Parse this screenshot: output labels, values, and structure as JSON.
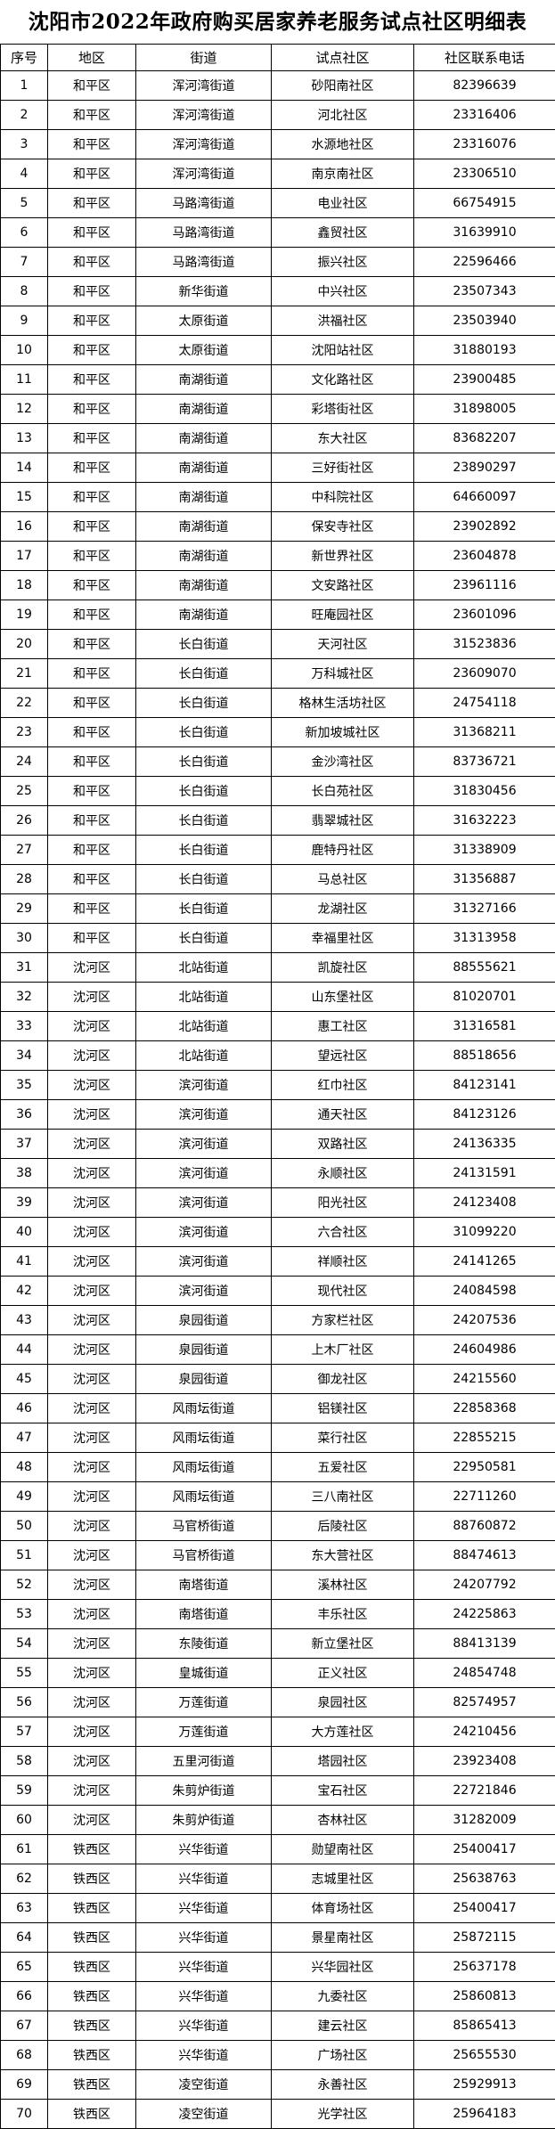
{
  "header": {
    "title": "沈阳市2022年政府购买居家养老服务试点社区明细表"
  },
  "table": {
    "columns": [
      "序号",
      "地区",
      "街道",
      "试点社区",
      "社区联系电话"
    ],
    "rows": [
      [
        "1",
        "和平区",
        "浑河湾街道",
        "砂阳南社区",
        "82396639"
      ],
      [
        "2",
        "和平区",
        "浑河湾街道",
        "河北社区",
        "23316406"
      ],
      [
        "3",
        "和平区",
        "浑河湾街道",
        "水源地社区",
        "23316076"
      ],
      [
        "4",
        "和平区",
        "浑河湾街道",
        "南京南社区",
        "23306510"
      ],
      [
        "5",
        "和平区",
        "马路湾街道",
        "电业社区",
        "66754915"
      ],
      [
        "6",
        "和平区",
        "马路湾街道",
        "鑫贸社区",
        "31639910"
      ],
      [
        "7",
        "和平区",
        "马路湾街道",
        "振兴社区",
        "22596466"
      ],
      [
        "8",
        "和平区",
        "新华街道",
        "中兴社区",
        "23507343"
      ],
      [
        "9",
        "和平区",
        "太原街道",
        "洪福社区",
        "23503940"
      ],
      [
        "10",
        "和平区",
        "太原街道",
        "沈阳站社区",
        "31880193"
      ],
      [
        "11",
        "和平区",
        "南湖街道",
        "文化路社区",
        "23900485"
      ],
      [
        "12",
        "和平区",
        "南湖街道",
        "彩塔街社区",
        "31898005"
      ],
      [
        "13",
        "和平区",
        "南湖街道",
        "东大社区",
        "83682207"
      ],
      [
        "14",
        "和平区",
        "南湖街道",
        "三好街社区",
        "23890297"
      ],
      [
        "15",
        "和平区",
        "南湖街道",
        "中科院社区",
        "64660097"
      ],
      [
        "16",
        "和平区",
        "南湖街道",
        "保安寺社区",
        "23902892"
      ],
      [
        "17",
        "和平区",
        "南湖街道",
        "新世界社区",
        "23604878"
      ],
      [
        "18",
        "和平区",
        "南湖街道",
        "文安路社区",
        "23961116"
      ],
      [
        "19",
        "和平区",
        "南湖街道",
        "旺庵园社区",
        "23601096"
      ],
      [
        "20",
        "和平区",
        "长白街道",
        "天河社区",
        "31523836"
      ],
      [
        "21",
        "和平区",
        "长白街道",
        "万科城社区",
        "23609070"
      ],
      [
        "22",
        "和平区",
        "长白街道",
        "格林生活坊社区",
        "24754118"
      ],
      [
        "23",
        "和平区",
        "长白街道",
        "新加坡城社区",
        "31368211"
      ],
      [
        "24",
        "和平区",
        "长白街道",
        "金沙湾社区",
        "83736721"
      ],
      [
        "25",
        "和平区",
        "长白街道",
        "长白苑社区",
        "31830456"
      ],
      [
        "26",
        "和平区",
        "长白街道",
        "翡翠城社区",
        "31632223"
      ],
      [
        "27",
        "和平区",
        "长白街道",
        "鹿特丹社区",
        "31338909"
      ],
      [
        "28",
        "和平区",
        "长白街道",
        "马总社区",
        "31356887"
      ],
      [
        "29",
        "和平区",
        "长白街道",
        "龙湖社区",
        "31327166"
      ],
      [
        "30",
        "和平区",
        "长白街道",
        "幸福里社区",
        "31313958"
      ],
      [
        "31",
        "沈河区",
        "北站街道",
        "凯旋社区",
        "88555621"
      ],
      [
        "32",
        "沈河区",
        "北站街道",
        "山东堡社区",
        "81020701"
      ],
      [
        "33",
        "沈河区",
        "北站街道",
        "惠工社区",
        "31316581"
      ],
      [
        "34",
        "沈河区",
        "北站街道",
        "望远社区",
        "88518656"
      ],
      [
        "35",
        "沈河区",
        "滨河街道",
        "红巾社区",
        "84123141"
      ],
      [
        "36",
        "沈河区",
        "滨河街道",
        "通天社区",
        "84123126"
      ],
      [
        "37",
        "沈河区",
        "滨河街道",
        "双路社区",
        "24136335"
      ],
      [
        "38",
        "沈河区",
        "滨河街道",
        "永顺社区",
        "24131591"
      ],
      [
        "39",
        "沈河区",
        "滨河街道",
        "阳光社区",
        "24123408"
      ],
      [
        "40",
        "沈河区",
        "滨河街道",
        "六合社区",
        "31099220"
      ],
      [
        "41",
        "沈河区",
        "滨河街道",
        "祥顺社区",
        "24141265"
      ],
      [
        "42",
        "沈河区",
        "滨河街道",
        "现代社区",
        "24084598"
      ],
      [
        "43",
        "沈河区",
        "泉园街道",
        "方家栏社区",
        "24207536"
      ],
      [
        "44",
        "沈河区",
        "泉园街道",
        "上木厂社区",
        "24604986"
      ],
      [
        "45",
        "沈河区",
        "泉园街道",
        "御龙社区",
        "24215560"
      ],
      [
        "46",
        "沈河区",
        "风雨坛街道",
        "铝镁社区",
        "22858368"
      ],
      [
        "47",
        "沈河区",
        "风雨坛街道",
        "菜行社区",
        "22855215"
      ],
      [
        "48",
        "沈河区",
        "风雨坛街道",
        "五爱社区",
        "22950581"
      ],
      [
        "49",
        "沈河区",
        "风雨坛街道",
        "三八南社区",
        "22711260"
      ],
      [
        "50",
        "沈河区",
        "马官桥街道",
        "后陵社区",
        "88760872"
      ],
      [
        "51",
        "沈河区",
        "马官桥街道",
        "东大营社区",
        "88474613"
      ],
      [
        "52",
        "沈河区",
        "南塔街道",
        "溪林社区",
        "24207792"
      ],
      [
        "53",
        "沈河区",
        "南塔街道",
        "丰乐社区",
        "24225863"
      ],
      [
        "54",
        "沈河区",
        "东陵街道",
        "新立堡社区",
        "88413139"
      ],
      [
        "55",
        "沈河区",
        "皇城街道",
        "正义社区",
        "24854748"
      ],
      [
        "56",
        "沈河区",
        "万莲街道",
        "泉园社区",
        "82574957"
      ],
      [
        "57",
        "沈河区",
        "万莲街道",
        "大方莲社区",
        "24210456"
      ],
      [
        "58",
        "沈河区",
        "五里河街道",
        "塔园社区",
        "23923408"
      ],
      [
        "59",
        "沈河区",
        "朱剪炉街道",
        "宝石社区",
        "22721846"
      ],
      [
        "60",
        "沈河区",
        "朱剪炉街道",
        "杏林社区",
        "31282009"
      ],
      [
        "61",
        "铁西区",
        "兴华街道",
        "勋望南社区",
        "25400417"
      ],
      [
        "62",
        "铁西区",
        "兴华街道",
        "志城里社区",
        "25638763"
      ],
      [
        "63",
        "铁西区",
        "兴华街道",
        "体育场社区",
        "25400417"
      ],
      [
        "64",
        "铁西区",
        "兴华街道",
        "景星南社区",
        "25872115"
      ],
      [
        "65",
        "铁西区",
        "兴华街道",
        "兴华园社区",
        "25637178"
      ],
      [
        "66",
        "铁西区",
        "兴华街道",
        "九委社区",
        "25860813"
      ],
      [
        "67",
        "铁西区",
        "兴华街道",
        "建云社区",
        "85865413"
      ],
      [
        "68",
        "铁西区",
        "兴华街道",
        "广场社区",
        "25655530"
      ],
      [
        "69",
        "铁西区",
        "凌空街道",
        "永善社区",
        "25929913"
      ],
      [
        "70",
        "铁西区",
        "凌空街道",
        "光学社区",
        "25964183"
      ]
    ]
  }
}
